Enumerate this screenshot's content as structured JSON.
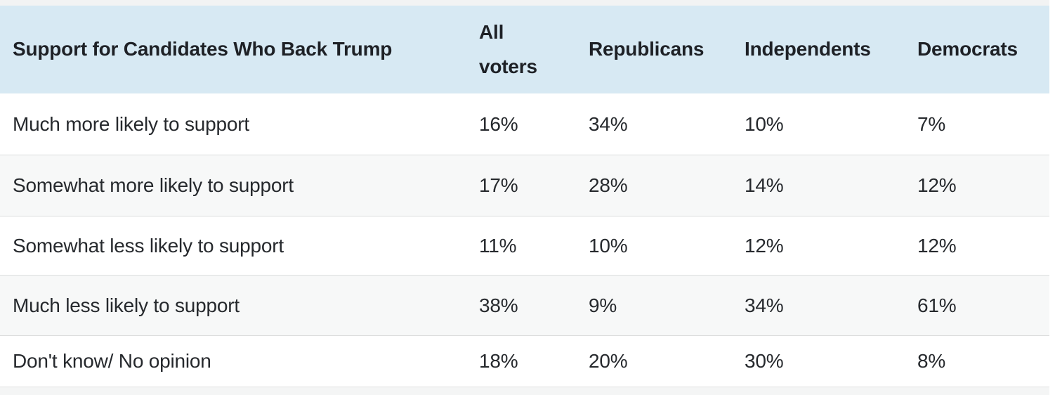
{
  "table": {
    "title": "Support for Candidates Who Back Trump",
    "columns": [
      "All voters",
      "Republicans",
      "Independents",
      "Democrats"
    ],
    "rows": [
      {
        "label": "Much more likely to support",
        "values": [
          "16%",
          "34%",
          "10%",
          "7%"
        ]
      },
      {
        "label": "Somewhat more likely to support",
        "values": [
          "17%",
          "28%",
          "14%",
          "12%"
        ]
      },
      {
        "label": "Somewhat less likely to support",
        "values": [
          "11%",
          "10%",
          "12%",
          "12%"
        ]
      },
      {
        "label": "Much less likely to support",
        "values": [
          "38%",
          "9%",
          "34%",
          "61%"
        ]
      },
      {
        "label": "Don't know/ No opinion",
        "values": [
          "18%",
          "20%",
          "30%",
          "8%"
        ]
      }
    ],
    "colors": {
      "header_bg": "#d7e9f3",
      "row_alt_bg": "#f7f8f8",
      "divider": "#dcdddd",
      "text": "#26292d"
    }
  },
  "chart_data": {
    "type": "table",
    "title": "Support for Candidates Who Back Trump",
    "categories": [
      "Much more likely to support",
      "Somewhat more likely to support",
      "Somewhat less likely to support",
      "Much less likely to support",
      "Don't know/ No opinion"
    ],
    "series": [
      {
        "name": "All voters",
        "values": [
          16,
          17,
          11,
          38,
          18
        ]
      },
      {
        "name": "Republicans",
        "values": [
          34,
          28,
          10,
          9,
          20
        ]
      },
      {
        "name": "Independents",
        "values": [
          10,
          14,
          12,
          34,
          30
        ]
      },
      {
        "name": "Democrats",
        "values": [
          7,
          12,
          12,
          61,
          8
        ]
      }
    ],
    "unit": "%",
    "layout": "rows striped white / light-gray, light-blue header band"
  }
}
